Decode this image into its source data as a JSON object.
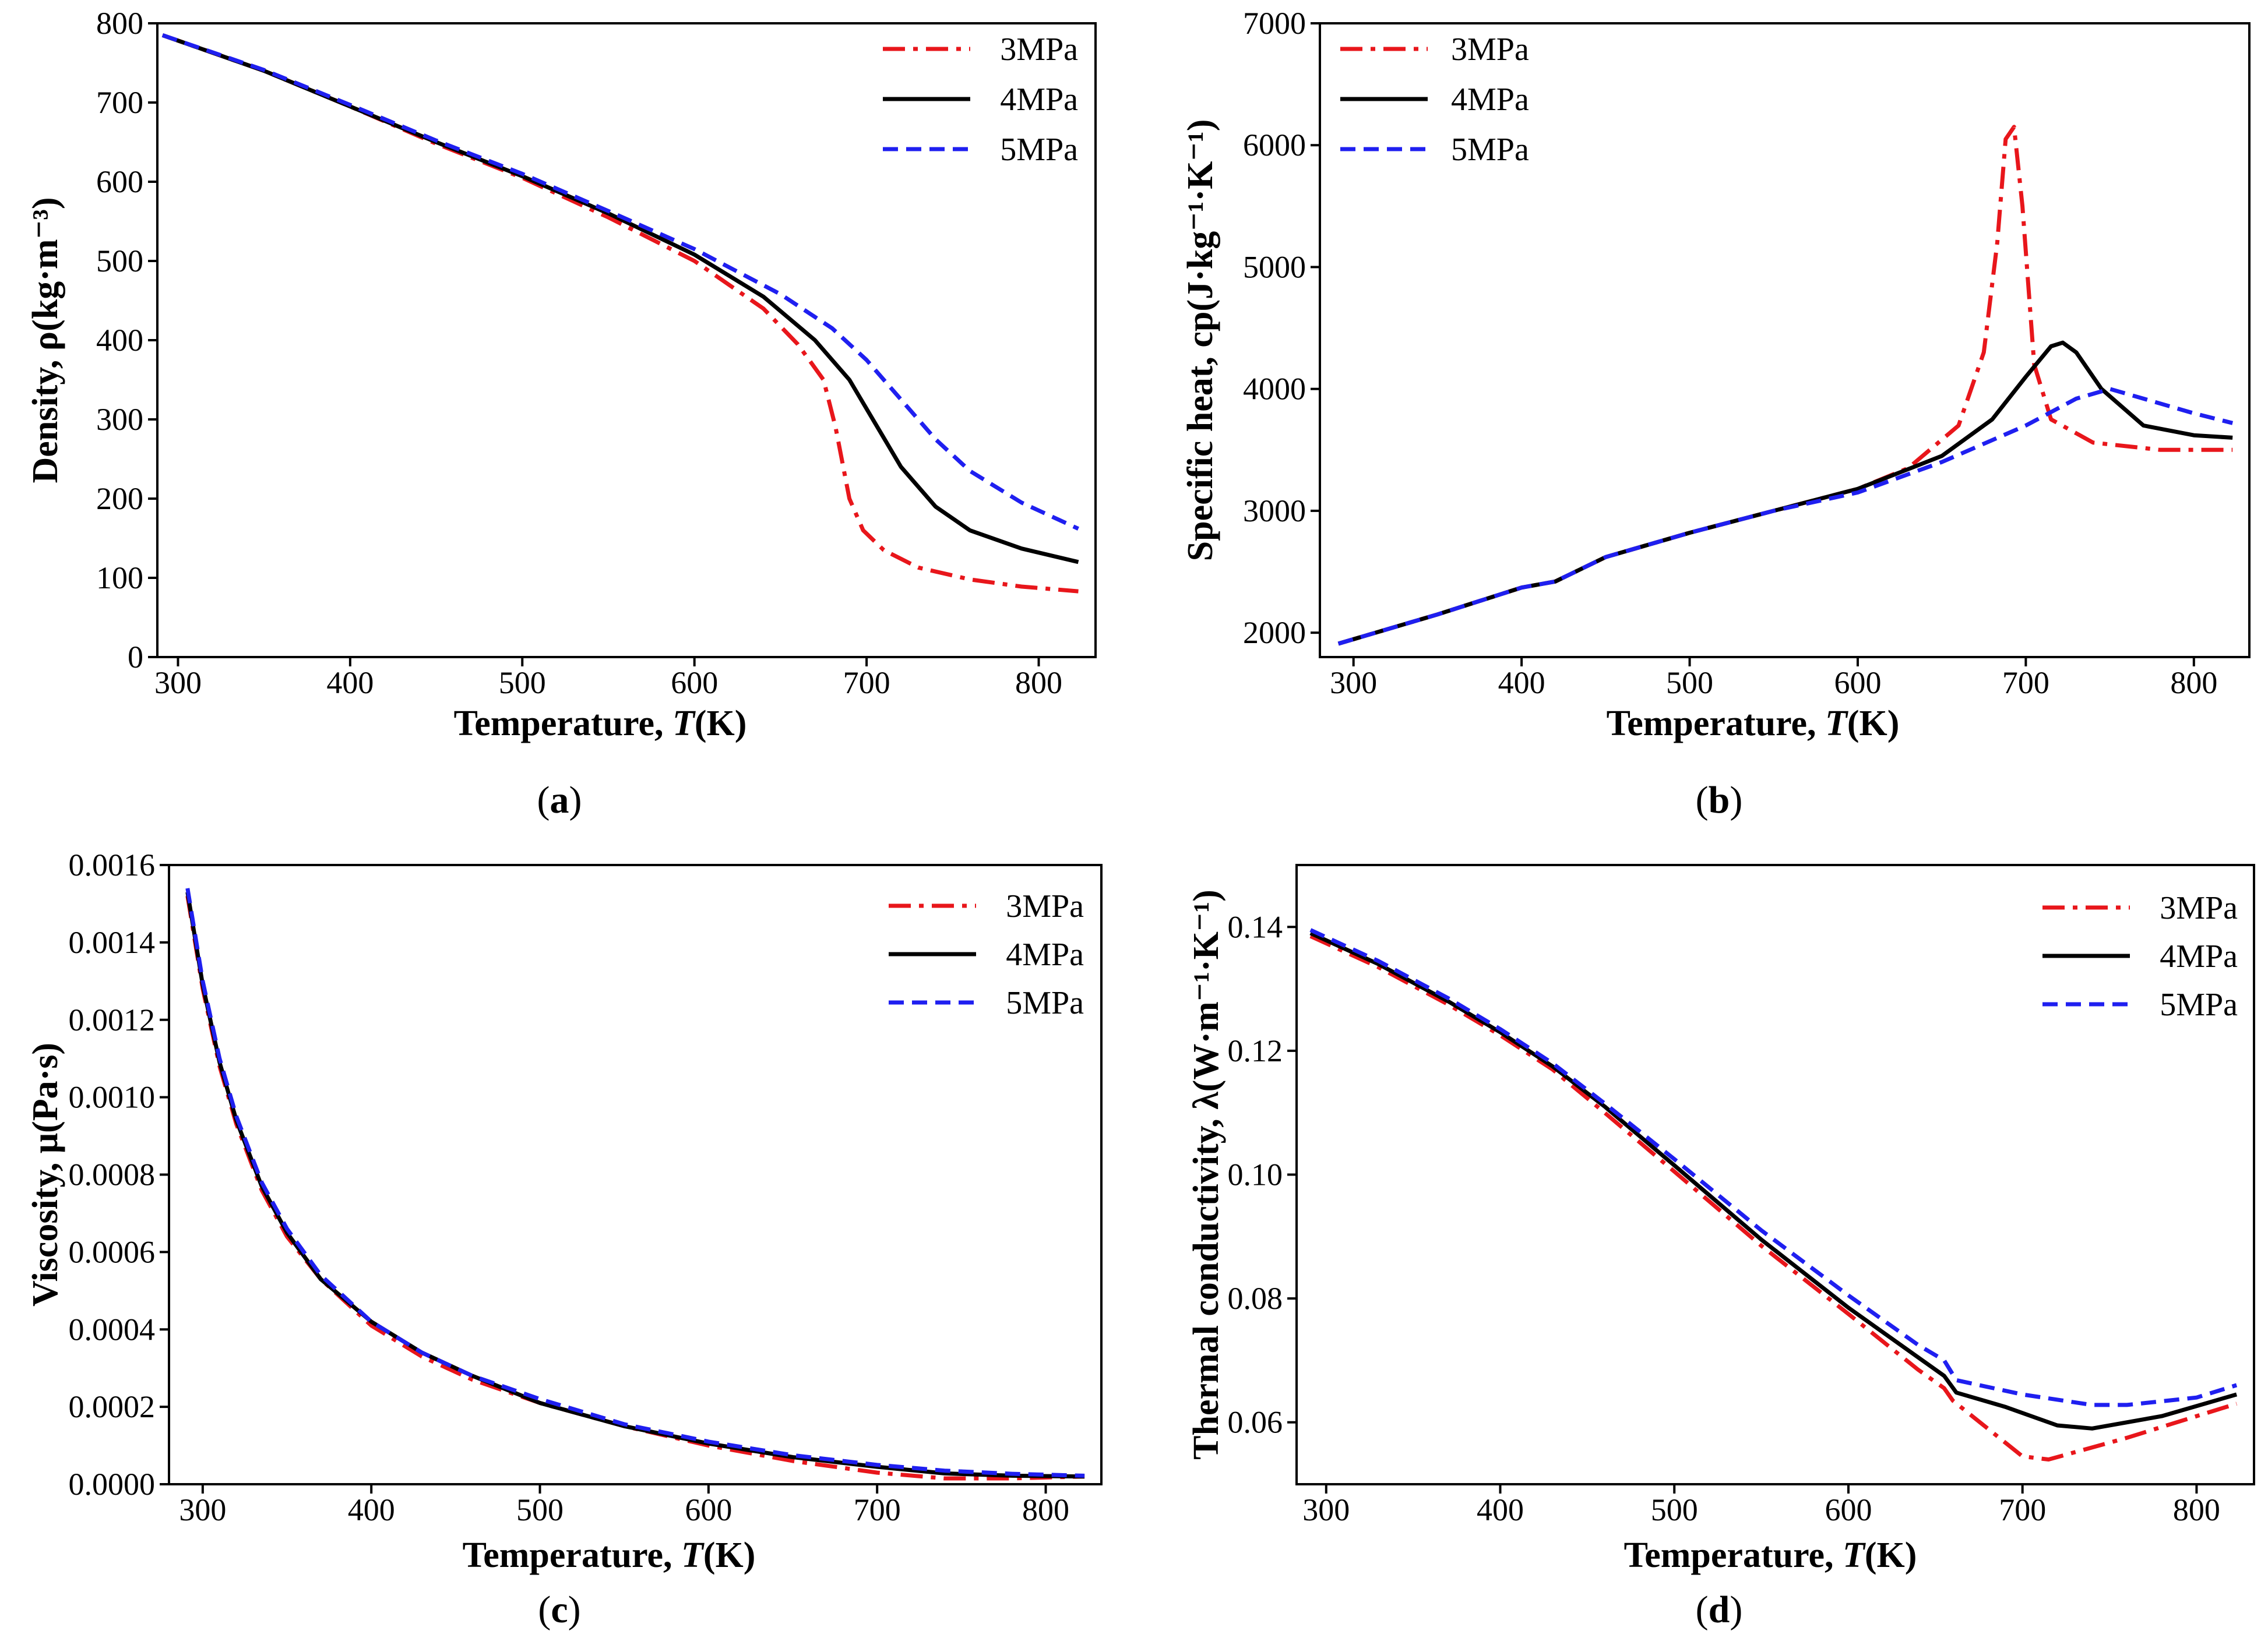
{
  "chart_data": [
    {
      "type": "line",
      "id": "a",
      "caption_letter": "a",
      "xlabel_text": "Temperature, ",
      "xlabel_var": "T",
      "xlabel_unit": "(K)",
      "ylabel": "Density, ρ(kg·m⁻³)",
      "xlim": [
        288,
        833
      ],
      "ylim": [
        0,
        800
      ],
      "xticks": [
        300,
        400,
        500,
        600,
        700,
        800
      ],
      "yticks": [
        0,
        100,
        200,
        300,
        400,
        500,
        600,
        700,
        800
      ],
      "xtick_labels": [
        "300",
        "400",
        "500",
        "600",
        "700",
        "800"
      ],
      "ytick_labels": [
        "0",
        "100",
        "200",
        "300",
        "400",
        "500",
        "600",
        "700",
        "800"
      ],
      "legend_position": "top-right",
      "series": [
        {
          "name": "3MPa",
          "color": "#e8161b",
          "dash": "dashdot",
          "x": [
            291,
            350,
            400,
            450,
            500,
            550,
            600,
            640,
            660,
            675,
            682,
            690,
            698,
            710,
            730,
            760,
            790,
            823
          ],
          "y": [
            785,
            740,
            695,
            648,
            605,
            555,
            500,
            440,
            395,
            350,
            290,
            200,
            160,
            135,
            113,
            98,
            89,
            83
          ]
        },
        {
          "name": "4MPa",
          "color": "#000000",
          "dash": "solid",
          "x": [
            291,
            350,
            400,
            450,
            500,
            550,
            600,
            640,
            670,
            690,
            705,
            720,
            740,
            760,
            790,
            823
          ],
          "y": [
            785,
            740,
            695,
            650,
            607,
            560,
            508,
            455,
            400,
            350,
            295,
            240,
            190,
            160,
            137,
            120
          ]
        },
        {
          "name": "5MPa",
          "color": "#1f1ff0",
          "dash": "dashed",
          "x": [
            291,
            350,
            400,
            450,
            500,
            550,
            600,
            650,
            680,
            700,
            720,
            740,
            760,
            790,
            823
          ],
          "y": [
            785,
            741,
            697,
            652,
            610,
            563,
            515,
            458,
            415,
            375,
            325,
            275,
            235,
            195,
            162
          ]
        }
      ]
    },
    {
      "type": "line",
      "id": "b",
      "caption_letter": "b",
      "xlabel_text": "Temperature, ",
      "xlabel_var": "T",
      "xlabel_unit": "(K)",
      "ylabel": "Specific heat, cp(J·kg⁻¹·K⁻¹)",
      "xlim": [
        280,
        833
      ],
      "ylim": [
        1800,
        7000
      ],
      "xticks": [
        300,
        400,
        500,
        600,
        700,
        800
      ],
      "yticks": [
        2000,
        3000,
        4000,
        5000,
        6000,
        7000
      ],
      "xtick_labels": [
        "300",
        "400",
        "500",
        "600",
        "700",
        "800"
      ],
      "ytick_labels": [
        "2000",
        "3000",
        "4000",
        "5000",
        "6000",
        "7000"
      ],
      "legend_position": "top-left",
      "series": [
        {
          "name": "3MPa",
          "color": "#e8161b",
          "dash": "dashdot",
          "x": [
            291,
            350,
            400,
            420,
            450,
            500,
            550,
            600,
            630,
            660,
            675,
            683,
            688,
            693,
            698,
            705,
            715,
            740,
            780,
            823
          ],
          "y": [
            1910,
            2150,
            2370,
            2420,
            2620,
            2820,
            3000,
            3180,
            3350,
            3700,
            4300,
            5200,
            6050,
            6150,
            5500,
            4200,
            3750,
            3560,
            3500,
            3500
          ]
        },
        {
          "name": "4MPa",
          "color": "#000000",
          "dash": "solid",
          "x": [
            291,
            350,
            400,
            420,
            450,
            500,
            550,
            600,
            650,
            680,
            700,
            715,
            722,
            730,
            745,
            770,
            800,
            823
          ],
          "y": [
            1910,
            2150,
            2370,
            2420,
            2620,
            2820,
            3000,
            3180,
            3450,
            3750,
            4100,
            4350,
            4380,
            4300,
            4000,
            3700,
            3620,
            3600
          ]
        },
        {
          "name": "5MPa",
          "color": "#1f1ff0",
          "dash": "dashed",
          "x": [
            291,
            350,
            400,
            420,
            450,
            500,
            550,
            600,
            650,
            700,
            730,
            750,
            770,
            800,
            823
          ],
          "y": [
            1910,
            2150,
            2370,
            2420,
            2620,
            2820,
            3000,
            3150,
            3400,
            3700,
            3920,
            4000,
            3920,
            3800,
            3720
          ]
        }
      ]
    },
    {
      "type": "line",
      "id": "c",
      "caption_letter": "c",
      "xlabel_text": "Temperature, ",
      "xlabel_var": "T",
      "xlabel_unit": "(K)",
      "ylabel": "Viscosity, μ(Pa·s)",
      "xlim": [
        280,
        833
      ],
      "ylim": [
        0,
        0.0016
      ],
      "xticks": [
        300,
        400,
        500,
        600,
        700,
        800
      ],
      "yticks": [
        0,
        0.0002,
        0.0004,
        0.0006,
        0.0008,
        0.001,
        0.0012,
        0.0014,
        0.0016
      ],
      "xtick_labels": [
        "300",
        "400",
        "500",
        "600",
        "700",
        "800"
      ],
      "ytick_labels": [
        "0.0000",
        "0.0002",
        "0.0004",
        "0.0006",
        "0.0008",
        "0.0010",
        "0.0012",
        "0.0014",
        "0.0016"
      ],
      "legend_position": "top-right",
      "series": [
        {
          "name": "3MPa",
          "color": "#e8161b",
          "dash": "dashdot",
          "x": [
            291,
            300,
            310,
            320,
            335,
            350,
            370,
            400,
            430,
            460,
            500,
            550,
            600,
            650,
            700,
            740,
            780,
            823
          ],
          "y": [
            0.00152,
            0.00128,
            0.00108,
            0.00093,
            0.00076,
            0.00064,
            0.00053,
            0.00041,
            0.00033,
            0.00027,
            0.00021,
            0.00015,
            0.0001,
            6e-05,
            3e-05,
            1.5e-05,
            1.5e-05,
            2e-05
          ]
        },
        {
          "name": "4MPa",
          "color": "#000000",
          "dash": "solid",
          "x": [
            291,
            300,
            310,
            320,
            335,
            350,
            370,
            400,
            430,
            460,
            500,
            550,
            600,
            650,
            700,
            740,
            780,
            823
          ],
          "y": [
            0.00153,
            0.00129,
            0.00109,
            0.00094,
            0.00077,
            0.00065,
            0.00053,
            0.00042,
            0.00034,
            0.00028,
            0.00021,
            0.00015,
            0.000105,
            7e-05,
            4.5e-05,
            2.8e-05,
            2.2e-05,
            2e-05
          ]
        },
        {
          "name": "5MPa",
          "color": "#1f1ff0",
          "dash": "dashed",
          "x": [
            291,
            300,
            310,
            320,
            335,
            350,
            370,
            400,
            430,
            460,
            500,
            550,
            600,
            650,
            700,
            740,
            780,
            823
          ],
          "y": [
            0.00154,
            0.0013,
            0.0011,
            0.00095,
            0.00078,
            0.00066,
            0.00054,
            0.00042,
            0.00034,
            0.00028,
            0.00022,
            0.000155,
            0.00011,
            7.5e-05,
            5e-05,
            3.5e-05,
            2.7e-05,
            2.2e-05
          ]
        }
      ]
    },
    {
      "type": "line",
      "id": "d",
      "caption_letter": "d",
      "xlabel_text": "Temperature, ",
      "xlabel_var": "T",
      "xlabel_unit": "(K)",
      "ylabel": "Thermal conductivity, λ(W·m⁻¹·K⁻¹)",
      "xlim": [
        283,
        833
      ],
      "ylim": [
        0.05,
        0.15
      ],
      "xticks": [
        300,
        400,
        500,
        600,
        700,
        800
      ],
      "yticks": [
        0.06,
        0.08,
        0.1,
        0.12,
        0.14
      ],
      "xtick_labels": [
        "300",
        "400",
        "500",
        "600",
        "700",
        "800"
      ],
      "ytick_labels": [
        "0.06",
        "0.08",
        "0.10",
        "0.12",
        "0.14"
      ],
      "legend_position": "top-right",
      "series": [
        {
          "name": "3MPa",
          "color": "#e8161b",
          "dash": "dashdot",
          "x": [
            291,
            330,
            370,
            400,
            430,
            460,
            500,
            550,
            600,
            640,
            655,
            660,
            680,
            700,
            715,
            760,
            800,
            823
          ],
          "y": [
            0.1385,
            0.1335,
            0.1275,
            0.1225,
            0.117,
            0.11,
            0.1005,
            0.0885,
            0.0775,
            0.0685,
            0.0655,
            0.0635,
            0.059,
            0.0545,
            0.054,
            0.0575,
            0.061,
            0.063
          ]
        },
        {
          "name": "4MPa",
          "color": "#000000",
          "dash": "solid",
          "x": [
            291,
            330,
            370,
            400,
            430,
            460,
            500,
            550,
            600,
            640,
            655,
            662,
            690,
            720,
            740,
            780,
            823
          ],
          "y": [
            0.139,
            0.134,
            0.128,
            0.123,
            0.1175,
            0.111,
            0.1015,
            0.0895,
            0.0785,
            0.0705,
            0.0675,
            0.0648,
            0.0625,
            0.0595,
            0.059,
            0.061,
            0.0645
          ]
        },
        {
          "name": "5MPa",
          "color": "#1f1ff0",
          "dash": "dashed",
          "x": [
            291,
            330,
            370,
            400,
            430,
            460,
            500,
            550,
            600,
            640,
            655,
            662,
            700,
            740,
            760,
            800,
            823
          ],
          "y": [
            0.1395,
            0.1345,
            0.1285,
            0.1235,
            0.118,
            0.1115,
            0.1025,
            0.091,
            0.0805,
            0.0725,
            0.07,
            0.0668,
            0.0645,
            0.0628,
            0.0628,
            0.064,
            0.066
          ]
        }
      ]
    }
  ]
}
